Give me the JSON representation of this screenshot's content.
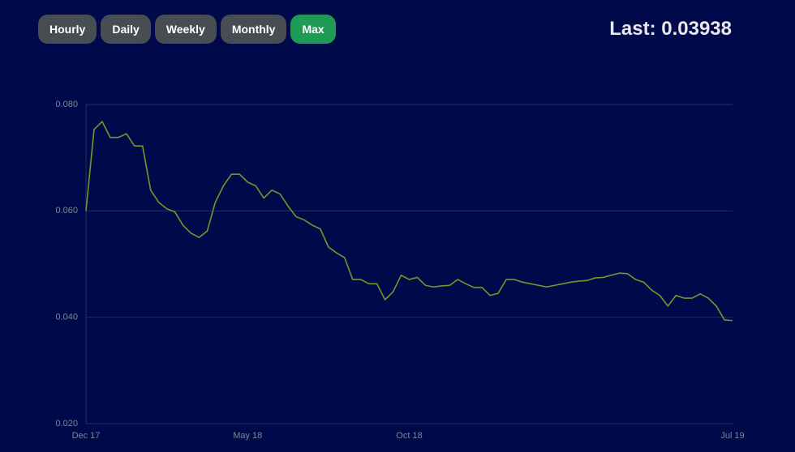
{
  "buttons": [
    {
      "label": "Hourly",
      "active": false
    },
    {
      "label": "Daily",
      "active": false
    },
    {
      "label": "Weekly",
      "active": false
    },
    {
      "label": "Monthly",
      "active": false
    },
    {
      "label": "Max",
      "active": true
    }
  ],
  "last": "Last: 0.03938",
  "chart_data": {
    "type": "line",
    "categories": [
      "Dec 17",
      null,
      null,
      null,
      null,
      null,
      null,
      null,
      null,
      null,
      null,
      null,
      null,
      null,
      null,
      null,
      null,
      null,
      null,
      null,
      "May 18",
      null,
      null,
      null,
      null,
      null,
      null,
      null,
      null,
      null,
      null,
      null,
      null,
      null,
      null,
      null,
      null,
      null,
      null,
      null,
      "Oct 18",
      null,
      null,
      null,
      null,
      null,
      null,
      null,
      null,
      null,
      null,
      null,
      null,
      null,
      null,
      null,
      null,
      null,
      null,
      null,
      null,
      null,
      null,
      null,
      null,
      null,
      null,
      null,
      null,
      null,
      null,
      null,
      null,
      null,
      null,
      null,
      null,
      null,
      null,
      null,
      "Jul 19"
    ],
    "values": [
      0.06,
      0.0753,
      0.0768,
      0.0738,
      0.0738,
      0.0745,
      0.0722,
      0.0722,
      0.0639,
      0.0616,
      0.0604,
      0.0598,
      0.0573,
      0.0558,
      0.055,
      0.0562,
      0.0616,
      0.0647,
      0.0669,
      0.0669,
      0.0654,
      0.0647,
      0.0624,
      0.0639,
      0.0632,
      0.0609,
      0.0589,
      0.0583,
      0.0573,
      0.0566,
      0.0532,
      0.0521,
      0.0512,
      0.0471,
      0.0471,
      0.0463,
      0.0463,
      0.0433,
      0.0448,
      0.0479,
      0.0471,
      0.0475,
      0.046,
      0.0457,
      0.0459,
      0.046,
      0.0471,
      0.0463,
      0.0456,
      0.0456,
      0.0441,
      0.0445,
      0.0471,
      0.0471,
      0.0466,
      0.0463,
      0.046,
      0.0457,
      0.046,
      0.0463,
      0.0466,
      0.0468,
      0.0469,
      0.0474,
      0.0475,
      0.0479,
      0.0483,
      0.0482,
      0.0471,
      0.0466,
      0.0451,
      0.0441,
      0.0421,
      0.0441,
      0.0436,
      0.0436,
      0.0444,
      0.0436,
      0.0421,
      0.0395,
      0.03938
    ],
    "color": "#6f9a28",
    "ylim": [
      0.02,
      0.08
    ],
    "yticks": [
      {
        "value": 0.02,
        "label": "0.020"
      },
      {
        "value": 0.04,
        "label": "0.040"
      },
      {
        "value": 0.06,
        "label": "0.060"
      },
      {
        "value": 0.08,
        "label": "0.080"
      }
    ],
    "grid": true
  }
}
